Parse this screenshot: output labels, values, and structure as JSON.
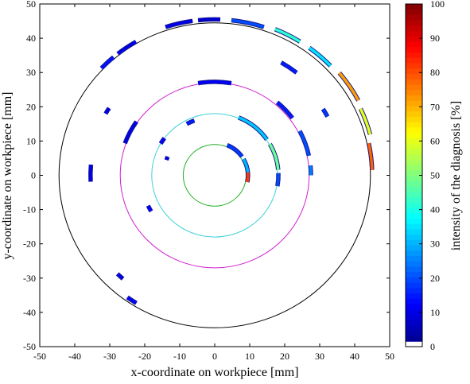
{
  "chart_data": {
    "type": "heatmap",
    "title": "",
    "xlabel": "x-coordinate on workpiece [mm]",
    "ylabel": "y-coordinate on workpiece [mm]",
    "xlim": [
      -50,
      50
    ],
    "ylim": [
      -50,
      50
    ],
    "x_ticks": [
      "-50",
      "-40",
      "-30",
      "-20",
      "-10",
      "0",
      "10",
      "20",
      "30",
      "40",
      "50"
    ],
    "y_ticks": [
      "50",
      "40",
      "30",
      "20",
      "10",
      "0",
      "-10",
      "-20",
      "-30",
      "-40",
      "-50"
    ],
    "grid": false,
    "reference_circles": [
      {
        "name": "",
        "radius": 44.5,
        "color": "#000000"
      },
      {
        "name": "",
        "radius": 27,
        "color": "#d020d0"
      },
      {
        "name": "",
        "radius": 18,
        "color": "#40d0d8"
      },
      {
        "name": "",
        "radius": 9,
        "color": "#20b020"
      }
    ],
    "colorbar": {
      "label": "intensity of the diagnosis [%]",
      "range": [
        0,
        100
      ],
      "ticks": [
        "100",
        "90",
        "80",
        "70",
        "60",
        "50",
        "40",
        "30",
        "20",
        "10",
        "0"
      ],
      "colormap": "jet"
    },
    "segments": [
      {
        "radius": 9.5,
        "angle_start": 35,
        "angle_end": 68,
        "intensity": 18
      },
      {
        "radius": 9.5,
        "angle_start": 5,
        "angle_end": 30,
        "intensity": 30
      },
      {
        "radius": 9.5,
        "angle_start": -12,
        "angle_end": 5,
        "intensity": 82
      },
      {
        "radius": 18.2,
        "angle_start": 35,
        "angle_end": 68,
        "intensity": 32
      },
      {
        "radius": 18.2,
        "angle_start": 5,
        "angle_end": 30,
        "intensity": 48
      },
      {
        "radius": 18.2,
        "angle_start": -10,
        "angle_end": 2,
        "intensity": 20
      },
      {
        "radius": 17,
        "angle_start": 110,
        "angle_end": 118,
        "intensity": 15
      },
      {
        "radius": 18,
        "angle_start": 143,
        "angle_end": 149,
        "intensity": 12
      },
      {
        "radius": 27.3,
        "angle_start": 80,
        "angle_end": 100,
        "intensity": 12
      },
      {
        "radius": 27.3,
        "angle_start": 145,
        "angle_end": 160,
        "intensity": 10
      },
      {
        "radius": 27.8,
        "angle_start": 37,
        "angle_end": 50,
        "intensity": 15
      },
      {
        "radius": 27.5,
        "angle_start": 12,
        "angle_end": 28,
        "intensity": 20
      },
      {
        "radius": 27.5,
        "angle_start": 0,
        "angle_end": 6,
        "intensity": 25
      },
      {
        "radius": 35.5,
        "angle_start": 175,
        "angle_end": 183,
        "intensity": 10
      },
      {
        "radius": 36,
        "angle_start": 147,
        "angle_end": 150,
        "intensity": 10
      },
      {
        "radius": 38,
        "angle_start": 52,
        "angle_end": 60,
        "intensity": 15
      },
      {
        "radius": 36.5,
        "angle_start": 28,
        "angle_end": 32,
        "intensity": 18
      },
      {
        "radius": 43.5,
        "angle_start": 235,
        "angle_end": 239,
        "intensity": 12
      },
      {
        "radius": 45,
        "angle_start": 120,
        "angle_end": 128,
        "intensity": 10
      },
      {
        "radius": 45,
        "angle_start": 130,
        "angle_end": 136,
        "intensity": 14
      },
      {
        "radius": 45.5,
        "angle_start": 98,
        "angle_end": 108,
        "intensity": 10
      },
      {
        "radius": 45.5,
        "angle_start": 88,
        "angle_end": 96,
        "intensity": 8
      },
      {
        "radius": 45.5,
        "angle_start": 72,
        "angle_end": 84,
        "intensity": 20
      },
      {
        "radius": 46,
        "angle_start": 58,
        "angle_end": 68,
        "intensity": 42
      },
      {
        "radius": 46,
        "angle_start": 44,
        "angle_end": 54,
        "intensity": 35
      },
      {
        "radius": 46.5,
        "angle_start": 28,
        "angle_end": 40,
        "intensity": 72
      },
      {
        "radius": 46,
        "angle_start": 15,
        "angle_end": 25,
        "intensity": 60
      },
      {
        "radius": 45,
        "angle_start": 2,
        "angle_end": 12,
        "intensity": 78
      },
      {
        "radius": 40,
        "angle_start": 226,
        "angle_end": 229,
        "intensity": 10
      },
      {
        "radius": 21,
        "angle_start": 205,
        "angle_end": 210,
        "intensity": 12
      },
      {
        "radius": 14.5,
        "angle_start": 158,
        "angle_end": 162,
        "intensity": 10
      }
    ]
  }
}
